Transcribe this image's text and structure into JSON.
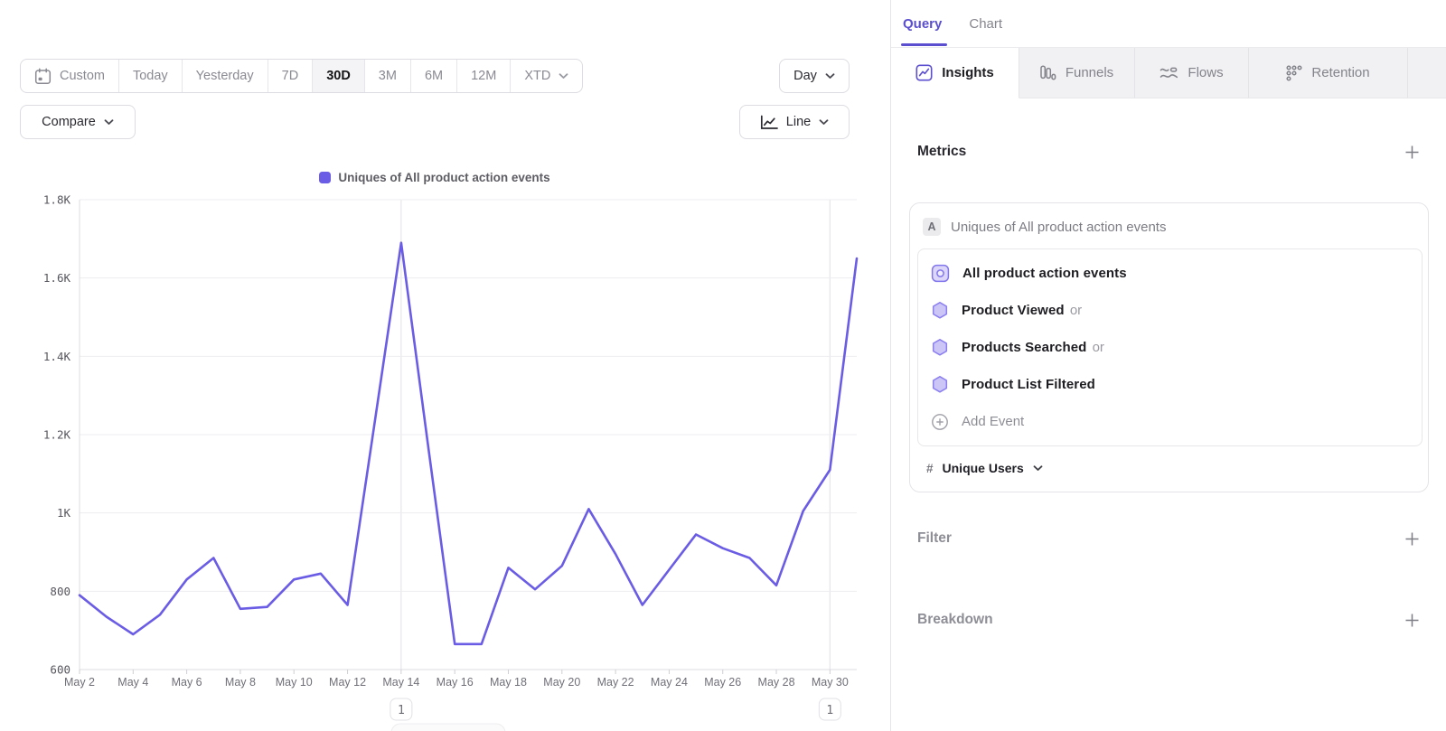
{
  "toolbar": {
    "date_ranges": [
      "Custom",
      "Today",
      "Yesterday",
      "7D",
      "30D",
      "3M",
      "6M",
      "12M",
      "XTD"
    ],
    "selected_range": "30D",
    "granularity": "Day",
    "compare_label": "Compare",
    "chart_type": "Line"
  },
  "chart_data": {
    "type": "line",
    "title": "",
    "legend_position": "top",
    "grid": true,
    "line_color": "#6a5ce4",
    "ylim": [
      600,
      1800
    ],
    "yticks": [
      {
        "value": 1800,
        "label": "1.8K"
      },
      {
        "value": 1600,
        "label": "1.6K"
      },
      {
        "value": 1400,
        "label": "1.4K"
      },
      {
        "value": 1200,
        "label": "1.2K"
      },
      {
        "value": 1000,
        "label": "1K"
      },
      {
        "value": 800,
        "label": "800"
      },
      {
        "value": 600,
        "label": "600"
      }
    ],
    "x_tick_interval": 2,
    "series": [
      {
        "name": "Uniques of All product action events",
        "x": [
          "May 2",
          "May 3",
          "May 4",
          "May 5",
          "May 6",
          "May 7",
          "May 8",
          "May 9",
          "May 10",
          "May 11",
          "May 12",
          "May 13",
          "May 14",
          "May 15",
          "May 16",
          "May 17",
          "May 18",
          "May 19",
          "May 20",
          "May 21",
          "May 22",
          "May 23",
          "May 24",
          "May 25",
          "May 26",
          "May 27",
          "May 28",
          "May 29",
          "May 30",
          "May 31"
        ],
        "values": [
          790,
          735,
          690,
          740,
          830,
          885,
          755,
          760,
          830,
          845,
          765,
          1225,
          1690,
          1175,
          665,
          665,
          860,
          805,
          865,
          1010,
          895,
          765,
          855,
          945,
          910,
          885,
          815,
          1005,
          1110,
          1650
        ]
      }
    ],
    "annotations": [
      {
        "x": "May 14",
        "label": "1"
      },
      {
        "x": "May 30",
        "label": "1"
      }
    ]
  },
  "query_panel": {
    "tabs": [
      {
        "label": "Query",
        "active": true
      },
      {
        "label": "Chart",
        "active": false
      }
    ],
    "report_tabs": [
      {
        "label": "Insights",
        "icon": "insights-icon",
        "active": true
      },
      {
        "label": "Funnels",
        "icon": "funnels-icon",
        "active": false
      },
      {
        "label": "Flows",
        "icon": "flows-icon",
        "active": false
      },
      {
        "label": "Retention",
        "icon": "retention-icon",
        "active": false
      }
    ],
    "metrics_heading": "Metrics",
    "metric": {
      "letter": "A",
      "title": "Uniques of All product action events",
      "events": [
        {
          "name": "All product action events",
          "suffix": "",
          "icon": "all-events"
        },
        {
          "name": "Product Viewed",
          "suffix": "or",
          "icon": "hexagon"
        },
        {
          "name": "Products Searched",
          "suffix": "or",
          "icon": "hexagon"
        },
        {
          "name": "Product List Filtered",
          "suffix": "",
          "icon": "hexagon"
        }
      ],
      "add_event_label": "Add Event",
      "measurement_symbol": "#",
      "measurement": "Unique Users"
    },
    "filter_heading": "Filter",
    "breakdown_heading": "Breakdown"
  }
}
